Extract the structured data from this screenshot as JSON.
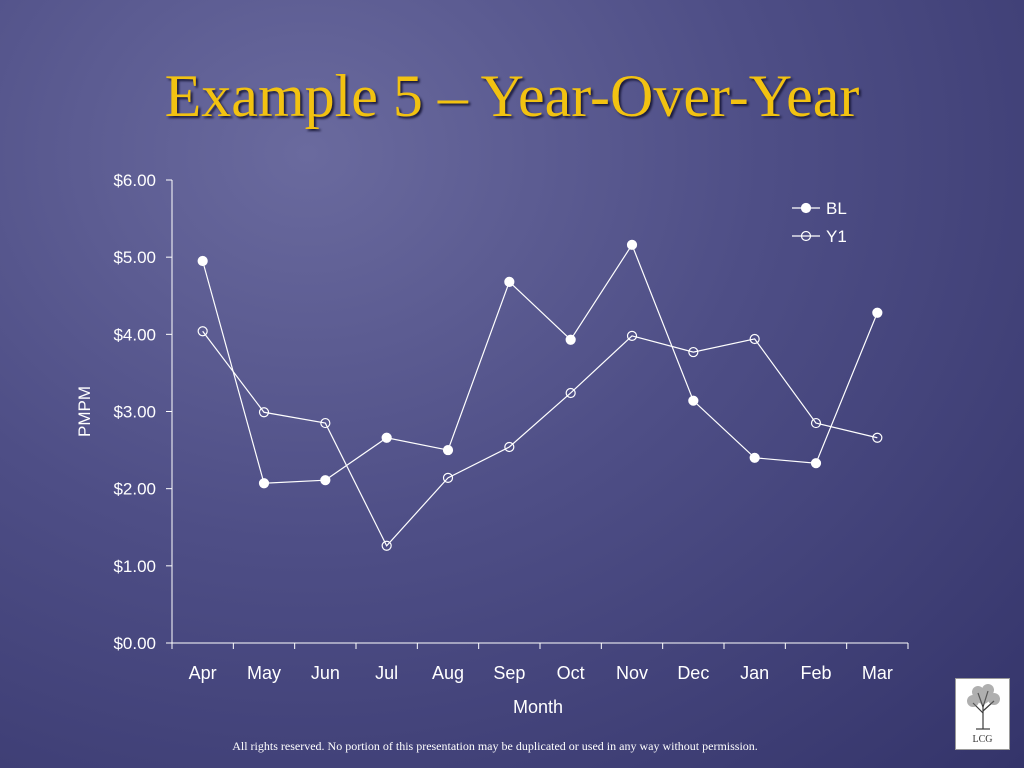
{
  "slide": {
    "title": "Example 5 – Year-Over-Year",
    "footer": "All rights reserved. No portion of this presentation may be duplicated or used in any way without permission.",
    "logo_text": "LCG"
  },
  "chart_data": {
    "type": "line",
    "categories": [
      "Apr",
      "May",
      "Jun",
      "Jul",
      "Aug",
      "Sep",
      "Oct",
      "Nov",
      "Dec",
      "Jan",
      "Feb",
      "Mar"
    ],
    "series": [
      {
        "name": "BL",
        "marker": "filled",
        "values": [
          4.95,
          2.07,
          2.11,
          2.66,
          2.5,
          4.68,
          3.93,
          5.16,
          3.14,
          2.4,
          2.33,
          4.28
        ]
      },
      {
        "name": "Y1",
        "marker": "hollow",
        "values": [
          4.04,
          2.99,
          2.85,
          1.26,
          2.14,
          2.54,
          3.24,
          3.98,
          3.77,
          3.94,
          2.85,
          2.66
        ]
      }
    ],
    "xlabel": "Month",
    "ylabel": "PMPM",
    "ylim": [
      0,
      6
    ],
    "yticks": [
      "$0.00",
      "$1.00",
      "$2.00",
      "$3.00",
      "$4.00",
      "$5.00",
      "$6.00"
    ],
    "grid": false,
    "legend": "top-right",
    "line_color": "#ffffff"
  }
}
